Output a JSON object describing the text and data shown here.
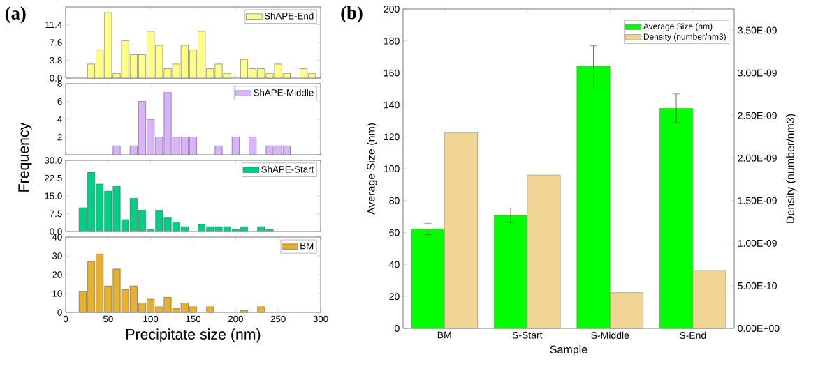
{
  "chart_data": [
    {
      "type": "histogram",
      "annotations": [
        "(a)"
      ],
      "bins": [
        15,
        25,
        35,
        45,
        55,
        65,
        75,
        85,
        95,
        105,
        115,
        125,
        135,
        145,
        155,
        165,
        175,
        185,
        195,
        205,
        215,
        225,
        235,
        245,
        255,
        265,
        275,
        285,
        295
      ],
      "series": [
        {
          "name": "ShAPE-End",
          "color": "#ffff88",
          "values": [
            0,
            3,
            6,
            14,
            1,
            8,
            5,
            5,
            10,
            7,
            2,
            3,
            7,
            6,
            10,
            2,
            3,
            1,
            0,
            4,
            2,
            2,
            1,
            3,
            1,
            0,
            2,
            1
          ]
        }
      ],
      "xlim": [
        0,
        300
      ],
      "xticks": [
        0,
        50,
        100,
        150,
        200,
        250,
        300
      ],
      "ylim": [
        0,
        15.2
      ],
      "yticks": [
        {
          "value": 0,
          "label": "0.0"
        },
        3.8,
        7.6,
        11.4
      ],
      "tick_labels": "y",
      "legend": "top right"
    },
    {
      "type": "histogram",
      "ylabel": "Frequency",
      "bins": [
        15,
        25,
        35,
        45,
        55,
        65,
        75,
        85,
        95,
        105,
        115,
        125,
        135,
        145,
        155,
        165,
        175,
        185,
        195,
        205,
        215,
        225,
        235,
        245,
        255,
        265,
        275,
        285,
        295
      ],
      "series": [
        {
          "name": "ShAPE-Middle",
          "color": "#d9b3ff",
          "values": [
            0,
            0,
            0,
            0,
            1,
            0,
            1,
            6,
            4,
            2,
            7,
            2,
            2,
            2,
            0,
            0,
            1,
            0,
            2,
            0,
            2,
            0,
            1,
            1,
            1,
            0,
            0,
            0
          ]
        }
      ],
      "xlim": [
        0,
        300
      ],
      "xticks": [
        0,
        50,
        100,
        150,
        200,
        250,
        300
      ],
      "ylim": [
        0,
        8
      ],
      "yticks": [
        {
          "value": 0,
          "label": null
        },
        2,
        4,
        6,
        8
      ],
      "tick_labels": "y",
      "legend": "top right"
    },
    {
      "type": "histogram",
      "bins": [
        15,
        25,
        35,
        45,
        55,
        65,
        75,
        85,
        95,
        105,
        115,
        125,
        135,
        145,
        155,
        165,
        175,
        185,
        195,
        205,
        215,
        225,
        235,
        245,
        255,
        265,
        275,
        285,
        295
      ],
      "series": [
        {
          "name": "ShAPE-Start",
          "color": "#00d084",
          "values": [
            10,
            25,
            20,
            17,
            19,
            5,
            14,
            9,
            1,
            9,
            6,
            4,
            2,
            0,
            3,
            2,
            2,
            2,
            1,
            2,
            0,
            2,
            1,
            0,
            0,
            0,
            0,
            0
          ]
        }
      ],
      "xlim": [
        0,
        300
      ],
      "xticks": [
        0,
        50,
        100,
        150,
        200,
        250,
        300
      ],
      "ylim": [
        0,
        30
      ],
      "yticks": [
        {
          "value": 0,
          "label": "0.0"
        },
        7.5,
        {
          "value": 15,
          "label": "15.0"
        },
        22.5,
        {
          "value": 30,
          "label": "30.0"
        }
      ],
      "tick_labels": "y",
      "legend": "top right"
    },
    {
      "type": "histogram",
      "xlabel": "Precipitate size (nm)",
      "bins": [
        15,
        25,
        35,
        45,
        55,
        65,
        75,
        85,
        95,
        105,
        115,
        125,
        135,
        145,
        155,
        165,
        175,
        185,
        195,
        205,
        215,
        225,
        235,
        245,
        255,
        265,
        275,
        285,
        295
      ],
      "series": [
        {
          "name": "BM",
          "color": "#e6b030",
          "values": [
            11,
            27,
            31,
            14,
            23,
            12,
            14,
            5,
            7,
            3,
            8,
            2,
            5,
            3,
            0,
            3,
            0,
            0,
            0,
            1,
            0,
            3,
            0,
            0,
            0,
            0,
            0,
            0
          ]
        }
      ],
      "xlim": [
        0,
        300
      ],
      "xticks": [
        0,
        50,
        100,
        150,
        200,
        250,
        300
      ],
      "ylim": [
        0,
        40
      ],
      "yticks": [
        0,
        10,
        20,
        30,
        40
      ],
      "legend": "top right"
    },
    {
      "type": "bar",
      "annotations": [
        "(b)"
      ],
      "xlabel": "Sample",
      "ylabel": "Average Size (nm)",
      "y2label": "Density (number/nm3)",
      "categories": [
        "BM",
        "S-Start",
        "S-Middle",
        "S-End"
      ],
      "series": [
        {
          "name": "Average Size (nm)",
          "color": "#00ff00",
          "values": [
            62.3,
            70.8,
            164.3,
            137.8
          ],
          "errors": [
            3.5,
            4.5,
            12.7,
            9
          ]
        },
        {
          "name": "Density (number/nm3)",
          "color": "#f0d595",
          "axis": "y2",
          "values": [
            2.3e-09,
            1.8e-09,
            4.2e-10,
            6.8e-10
          ]
        }
      ],
      "ylim": [
        0,
        200
      ],
      "yticks": [
        0,
        20,
        40,
        60,
        80,
        100,
        120,
        140,
        160,
        180,
        200
      ],
      "y2lim": [
        0,
        3.75e-09
      ],
      "y2ticks": [
        {
          "value": 0,
          "label": "0.00E+00"
        },
        {
          "value": 5e-10,
          "label": "5.00E-10"
        },
        {
          "value": 1e-09,
          "label": "1.00E-09"
        },
        {
          "value": 1.5e-09,
          "label": "1.50E-09"
        },
        {
          "value": 2e-09,
          "label": "2.00E-09"
        },
        {
          "value": 2.5e-09,
          "label": "2.50E-09"
        },
        {
          "value": 3e-09,
          "label": "3.00E-09"
        },
        {
          "value": 3.5e-09,
          "label": "3.50E-09"
        }
      ],
      "legend": "top right"
    }
  ]
}
